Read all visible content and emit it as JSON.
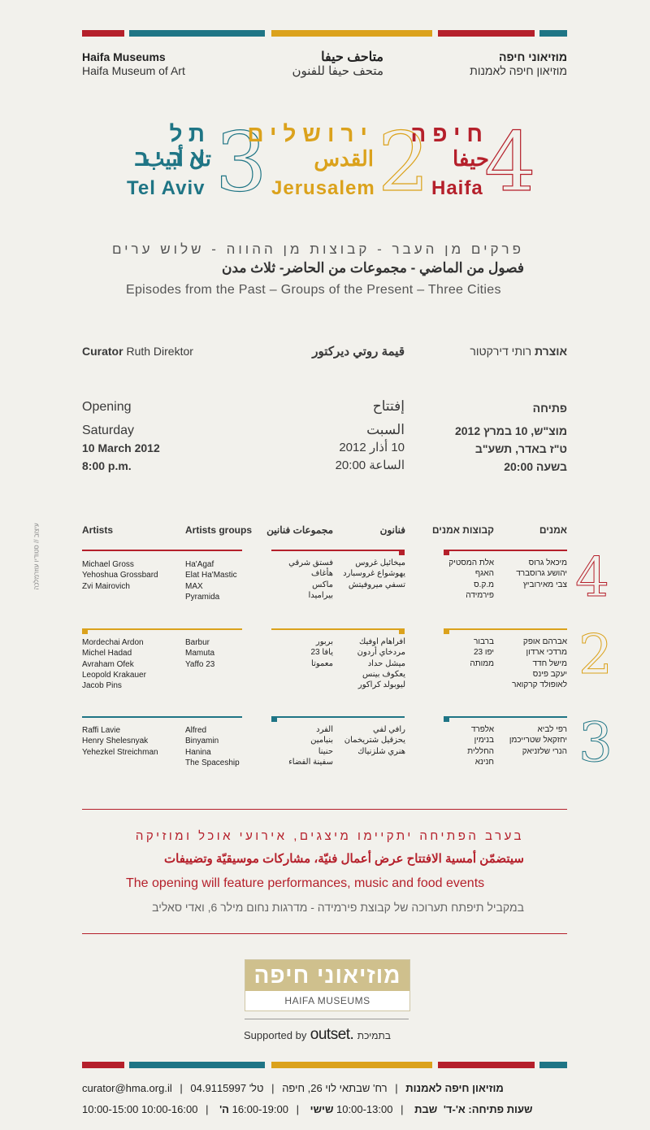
{
  "colors": {
    "red": "#b5202b",
    "teal": "#1f7585",
    "gold": "#dba21c"
  },
  "header": {
    "en_title": "Haifa Museums",
    "en_sub": "Haifa Museum of Art",
    "ar_title": "متاحف حيفا",
    "ar_sub": "متحف حيفا للفنون",
    "he_title": "מוזיאוני חיפה",
    "he_sub": "מוזיאון חיפה לאמנות"
  },
  "cities": {
    "telaviv": {
      "he": "תל אביב",
      "ar": "تل أبيب",
      "en": "Tel Aviv",
      "num": "3"
    },
    "jerusalem": {
      "he": "ירושלים",
      "ar": "القدس",
      "en": "Jerusalem",
      "num": "2"
    },
    "haifa": {
      "he": "חיפה",
      "ar": "حيفا",
      "en": "Haifa",
      "num": "4"
    }
  },
  "subtitle": {
    "he": "פרקים מן העבר - קבוצות מן ההווה - שלוש ערים",
    "ar": "فصول من الماضي - مجموعات من الحاضر- ثلاث مدن",
    "en": "Episodes from the Past – Groups of the Present – Three Cities"
  },
  "curator": {
    "en_label": "Curator",
    "en_name": "Ruth Direktor",
    "ar": "قيمة روتي ديركتور",
    "he_label": "אוצרת",
    "he_name": "רותי דירקטור"
  },
  "opening": {
    "en": {
      "label": "Opening",
      "day": "Saturday",
      "date": "10 March 2012",
      "time": "8:00 p.m."
    },
    "ar": {
      "label": "إفتتاح",
      "day": "السبت",
      "date": "10 أذار 2012",
      "time": "الساعة 20:00"
    },
    "he": {
      "label": "פתיחה",
      "day": "מוצ\"ש, 10 במרץ 2012",
      "date": "ט\"ז באדר, תשע\"ב",
      "time": "בשעה 20:00"
    }
  },
  "credit_vertical": "עיצוב // סטודיו עוזרמלכה",
  "columns": {
    "artists_en": "Artists",
    "groups_en": "Artists groups",
    "groups_ar": "مجموعات فنانين",
    "artists_ar": "فنانون",
    "groups_he": "קבוצות אמנים",
    "artists_he": "אמנים"
  },
  "rows": [
    {
      "num": "4",
      "artists_en": "Michael Gross\nYehoshua Grossbard\nZvi Mairovich",
      "groups_en": "Ha'Agaf\nElat Ha'Mastic\nMAX\nPyramida",
      "groups_ar": "فستق شرقي\nهأغاف\nماكس\nبيراميدا",
      "artists_ar": "ميخائيل غروس\nيهوشواع غروسبارد\nتسفي ميروفيتش",
      "groups_he": "אלת המסטיק\nהאגף\nמ.ק.ס\nפירמידה",
      "artists_he": "מיכאל גרוס\nיהושע גרוסברד\nצבי מאירוביץ"
    },
    {
      "num": "2",
      "artists_en": "Mordechai Ardon\nMichel Hadad\nAvraham Ofek\nLeopold Krakauer\nJacob Pins",
      "groups_en": "Barbur\nMamuta\nYaffo 23",
      "groups_ar": "بربور\nيافا 23\nمعموتا",
      "artists_ar": "افراهام اوفيك\nمردخاي أردون\nميشل حداد\nيعكوف بينس\nليوبولد كراكور",
      "groups_he": "ברבור\nיפו 23\nממותה",
      "artists_he": "אברהם אופק\nמרדכי ארדון\nמישל חדד\nיעקב פינס\nלאופולד קרקואר"
    },
    {
      "num": "3",
      "artists_en": "Raffi Lavie\nHenry Shelesnyak\nYehezkel Streichman",
      "groups_en": "Alfred\nBinyamin\nHanina\nThe Spaceship",
      "groups_ar": "الفرد\nبنيامين\nحنينا\nسفينة الفضاء",
      "artists_ar": "رافي لفي\nيحزقيل شتريخمان\nهنري شلزنياك",
      "groups_he": "אלפרד\nבנימין\nהחללית\nחנינא",
      "artists_he": "רפי לביא\nיחזקאל שטרייכמן\nהנרי שלזניאק"
    }
  ],
  "finale": {
    "he": "בערב הפתיחה יתקיימו מיצגים, אירועי אוכל ומוזיקה",
    "ar": "سيتضمّن أمسية الافتتاح عرض أعمال فنيّة، مشاركات موسيقيّة وتضييفات",
    "en": "The opening will feature performances, music and food events",
    "he2": "במקביל תיפתח תערוכה של קבוצת פירמידה - מדרגות נחום מילר 6, ואדי סאליב"
  },
  "logo": {
    "he": "מוזיאוני חיפה",
    "en": "HAIFA MUSEUMS"
  },
  "sponsor": {
    "supported_by": "Supported by",
    "brand": "outset.",
    "he": "בתמיכת"
  },
  "footer": {
    "email": "curator@hma.org.il",
    "phone": "טל' 04.9115997",
    "address": "רח' שבתאי לוי 26, חיפה",
    "museum": "מוזיאון חיפה לאמנות",
    "sat_time": "10:00-15:00",
    "sat_label": "שבת",
    "fri_time": "10:00-13:00",
    "fri_label": "שישי",
    "tue_time": "16:00-19:00",
    "tue_label": "ה'",
    "week_time": "10:00-16:00",
    "week_label": "שעות פתיחה: א'-ד'"
  }
}
